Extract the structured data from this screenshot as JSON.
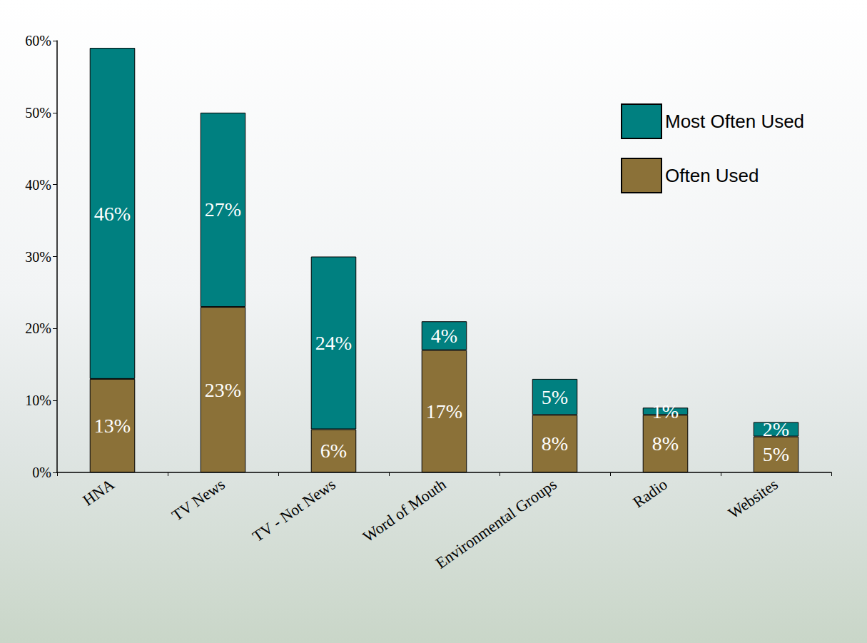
{
  "chart_data": {
    "type": "bar",
    "categories": [
      "HNA",
      "TV News",
      "TV - Not News",
      "Word of Mouth",
      "Environmental Groups",
      "Radio",
      "Websites"
    ],
    "series": [
      {
        "name": "Often Used",
        "color": "#8b7138",
        "values": [
          13,
          23,
          6,
          17,
          8,
          8,
          5
        ],
        "value_labels": [
          "13%",
          "23%",
          "6%",
          "17%",
          "8%",
          "8%",
          "5%"
        ]
      },
      {
        "name": "Most Often Used",
        "color": "#008080",
        "values": [
          46,
          27,
          24,
          4,
          5,
          1,
          2
        ],
        "value_labels": [
          "46%",
          "27%",
          "24%",
          "4%",
          "5%",
          "1%",
          "2%"
        ]
      }
    ],
    "ylim": [
      0,
      60
    ],
    "yticks": [
      {
        "value": 0,
        "label": "0%"
      },
      {
        "value": 10,
        "label": "10%"
      },
      {
        "value": 20,
        "label": "20%"
      },
      {
        "value": 30,
        "label": "30%"
      },
      {
        "value": 40,
        "label": "40%"
      },
      {
        "value": 50,
        "label": "50%"
      },
      {
        "value": 60,
        "label": "60%"
      }
    ],
    "stacked": true,
    "data_labels": true,
    "grid": false,
    "legend": "upper right"
  }
}
